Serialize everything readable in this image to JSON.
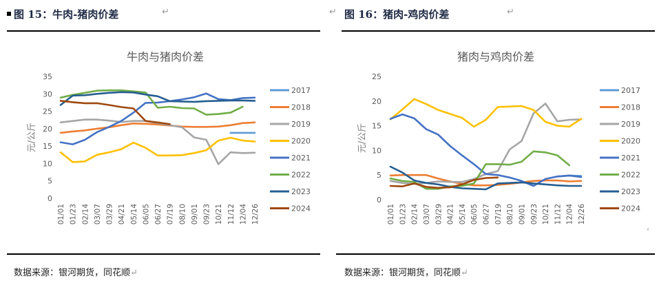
{
  "figures": [
    {
      "caption": "图 15：牛肉-猪肉价差",
      "source": "数据来源：银河期货，同花顺"
    },
    {
      "caption": "图 16：猪肉-鸡肉价差",
      "source": "数据来源：银河期货，同花顺"
    }
  ],
  "return_glyph": "↵",
  "chart_data": [
    {
      "type": "line",
      "title": "牛肉与猪肉价差",
      "xlabel": "",
      "ylabel": "元/公斤",
      "ylim": [
        0,
        35
      ],
      "yticks": [
        0,
        5,
        10,
        15,
        20,
        25,
        30,
        35
      ],
      "grid": false,
      "legend": "right",
      "x": [
        "01/01",
        "01/23",
        "02/14",
        "03/07",
        "03/29",
        "04/21",
        "05/14",
        "06/05",
        "06/27",
        "07/19",
        "08/10",
        "09/01",
        "09/23",
        "10/21",
        "11/12",
        "12/04",
        "12/26"
      ],
      "series": [
        {
          "name": "2017",
          "color": "#5b9bd5",
          "values": [
            null,
            null,
            null,
            null,
            null,
            null,
            null,
            null,
            null,
            null,
            null,
            null,
            null,
            null,
            18.8,
            18.8,
            18.8
          ]
        },
        {
          "name": "2018",
          "color": "#ed7d31",
          "values": [
            18.8,
            19.2,
            19.5,
            20.0,
            20.4,
            21.0,
            21.5,
            21.4,
            21.2,
            20.9,
            20.6,
            20.5,
            20.5,
            20.6,
            21.0,
            21.6,
            21.8
          ]
        },
        {
          "name": "2019",
          "color": "#a5a5a5",
          "values": [
            21.8,
            22.2,
            22.6,
            22.6,
            22.3,
            21.9,
            22.2,
            22.2,
            21.6,
            21.0,
            20.4,
            17.5,
            16.8,
            9.8,
            13.2,
            13.0,
            13.1
          ]
        },
        {
          "name": "2020",
          "color": "#ffc000",
          "values": [
            13.2,
            10.4,
            10.6,
            12.5,
            13.2,
            14.1,
            16.0,
            14.5,
            12.3,
            12.3,
            12.4,
            13.0,
            13.8,
            16.6,
            17.4,
            16.6,
            16.3
          ]
        },
        {
          "name": "2021",
          "color": "#4472c4",
          "values": [
            16.1,
            15.5,
            16.8,
            19.0,
            20.5,
            22.2,
            24.6,
            27.4,
            27.5,
            27.9,
            28.4,
            29.0,
            30.1,
            28.5,
            28.2,
            28.8,
            28.9
          ]
        },
        {
          "name": "2022",
          "color": "#70ad47",
          "values": [
            28.9,
            29.7,
            30.3,
            30.9,
            31.0,
            31.0,
            30.7,
            30.4,
            26.0,
            26.3,
            25.9,
            25.8,
            24.0,
            24.2,
            24.6,
            26.3,
            null
          ]
        },
        {
          "name": "2023",
          "color": "#255e91",
          "values": [
            26.8,
            29.5,
            29.6,
            30.0,
            30.3,
            30.5,
            30.4,
            29.8,
            29.3,
            27.9,
            27.8,
            27.7,
            27.9,
            28.0,
            28.1,
            28.1,
            28.0
          ]
        },
        {
          "name": "2024",
          "color": "#9e480e",
          "values": [
            28.0,
            27.6,
            27.3,
            27.3,
            26.8,
            26.2,
            25.8,
            22.2,
            21.8,
            21.3,
            null,
            null,
            null,
            null,
            null,
            null,
            null
          ]
        }
      ]
    },
    {
      "type": "line",
      "title": "猪肉与鸡肉价差",
      "xlabel": "",
      "ylabel": "元/公斤",
      "ylim": [
        0,
        25
      ],
      "yticks": [
        0,
        5,
        10,
        15,
        20,
        25
      ],
      "grid": false,
      "legend": "right",
      "x": [
        "01/01",
        "01/23",
        "02/14",
        "03/07",
        "03/29",
        "04/21",
        "05/14",
        "06/05",
        "06/27",
        "07/19",
        "08/10",
        "09/01",
        "09/23",
        "10/21",
        "11/12",
        "12/04",
        "12/26"
      ],
      "series": [
        {
          "name": "2017",
          "color": "#5b9bd5",
          "values": [
            null,
            null,
            null,
            null,
            null,
            null,
            null,
            null,
            null,
            null,
            null,
            null,
            null,
            null,
            4.7,
            4.9,
            4.8
          ]
        },
        {
          "name": "2018",
          "color": "#ed7d31",
          "values": [
            4.9,
            5.0,
            5.0,
            5.0,
            4.3,
            3.7,
            3.2,
            2.9,
            2.9,
            3.0,
            3.2,
            3.5,
            3.8,
            3.9,
            3.9,
            3.7,
            3.8
          ]
        },
        {
          "name": "2019",
          "color": "#a5a5a5",
          "values": [
            3.8,
            3.4,
            3.2,
            3.4,
            3.7,
            3.6,
            3.6,
            4.2,
            5.2,
            5.8,
            10.2,
            11.9,
            17.5,
            19.5,
            15.9,
            16.2,
            16.3
          ]
        },
        {
          "name": "2020",
          "color": "#ffc000",
          "values": [
            16.3,
            18.3,
            20.4,
            19.4,
            18.2,
            17.4,
            16.6,
            14.8,
            16.2,
            18.8,
            18.9,
            19.0,
            18.2,
            15.8,
            15.0,
            14.8,
            16.4
          ]
        },
        {
          "name": "2021",
          "color": "#4472c4",
          "values": [
            16.4,
            17.3,
            16.5,
            14.3,
            13.2,
            10.9,
            9.0,
            7.2,
            5.2,
            5.0,
            4.5,
            3.8,
            2.8,
            4.2,
            4.7,
            4.9,
            4.6
          ]
        },
        {
          "name": "2022",
          "color": "#70ad47",
          "values": [
            4.3,
            3.8,
            3.6,
            2.2,
            2.2,
            2.7,
            2.8,
            3.3,
            7.2,
            7.2,
            7.1,
            7.7,
            9.8,
            9.6,
            9.0,
            7.0,
            null
          ]
        },
        {
          "name": "2023",
          "color": "#255e91",
          "values": [
            6.7,
            5.5,
            3.9,
            3.4,
            3.1,
            2.6,
            2.3,
            2.2,
            2.1,
            3.3,
            3.4,
            3.5,
            3.3,
            3.1,
            2.9,
            2.8,
            2.8
          ]
        },
        {
          "name": "2024",
          "color": "#9e480e",
          "values": [
            2.8,
            2.7,
            3.3,
            2.6,
            2.4,
            2.5,
            3.1,
            4.0,
            4.4,
            4.5,
            null,
            null,
            null,
            null,
            null,
            null,
            null
          ]
        }
      ]
    }
  ]
}
